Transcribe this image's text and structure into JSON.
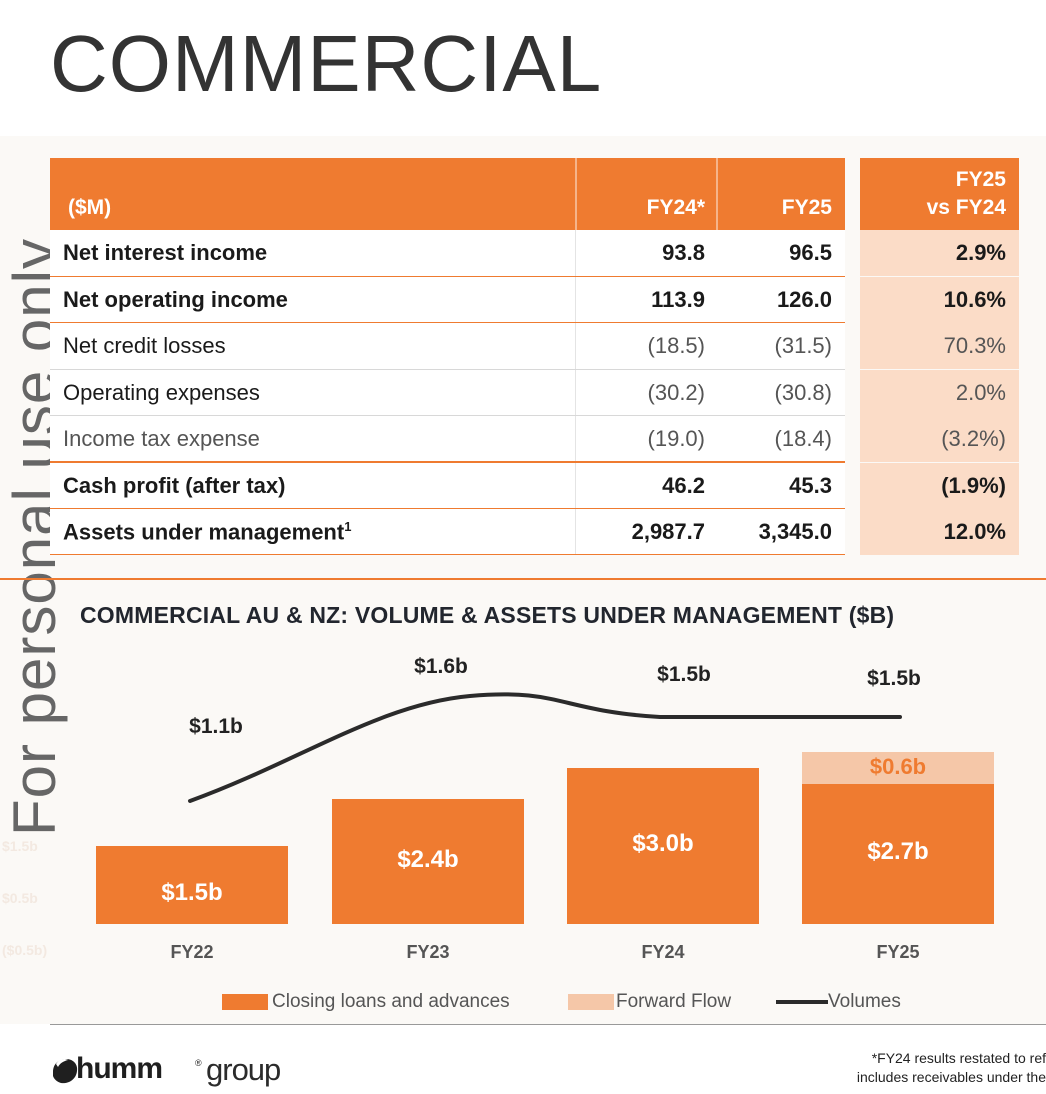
{
  "title": "COMMERCIAL",
  "watermark": "For personal use only",
  "table": {
    "header_label": "($M)",
    "col1": "FY24*",
    "col2": "FY25",
    "col3_line1": "FY25",
    "col3_line2": "vs FY24",
    "rows": [
      {
        "label": "Net interest income",
        "fy24": "93.8",
        "fy25": "96.5",
        "change": "2.9%"
      },
      {
        "label": "Net operating income",
        "fy24": "113.9",
        "fy25": "126.0",
        "change": "10.6%"
      },
      {
        "label": "Net credit losses",
        "fy24": "(18.5)",
        "fy25": "(31.5)",
        "change": "70.3%"
      },
      {
        "label": "Operating expenses",
        "fy24": "(30.2)",
        "fy25": "(30.8)",
        "change": "2.0%"
      },
      {
        "label": "Income tax expense",
        "fy24": "(19.0)",
        "fy25": "(18.4)",
        "change": "(3.2%)"
      },
      {
        "label": "Cash profit (after tax)",
        "fy24": "46.2",
        "fy25": "45.3",
        "change": "(1.9%)"
      },
      {
        "label": "Assets under management",
        "superscript": "1",
        "fy24": "2,987.7",
        "fy25": "3,345.0",
        "change": "12.0%"
      }
    ]
  },
  "chart_data": {
    "type": "bar",
    "title": "COMMERCIAL AU & NZ: VOLUME & ASSETS UNDER MANAGEMENT ($B)",
    "categories": [
      "FY22",
      "FY23",
      "FY24",
      "FY25"
    ],
    "series": [
      {
        "name": "Closing loans and advances",
        "values": [
          1.5,
          2.4,
          3.0,
          2.7
        ],
        "labels": [
          "$1.5b",
          "$2.4b",
          "$3.0b",
          "$2.7b"
        ]
      },
      {
        "name": "Forward Flow",
        "values": [
          0,
          0,
          0,
          0.6
        ],
        "labels": [
          "",
          "",
          "",
          "$0.6b"
        ]
      },
      {
        "name": "Volumes",
        "type": "line",
        "values": [
          1.1,
          1.6,
          1.5,
          1.5
        ],
        "labels": [
          "$1.1b",
          "$1.6b",
          "$1.5b",
          "$1.5b"
        ]
      }
    ],
    "stacked": true,
    "legend": "bottom",
    "colors": {
      "loans": "#ef7b30",
      "forward_flow": "#f5c7a8",
      "volumes": "#2b2b2b"
    },
    "ghost_axis_labels": [
      "$1.5b",
      "$0.5b",
      "($0.5b)"
    ]
  },
  "footer": {
    "logo_word": "humm",
    "logo_suffix": "group",
    "note_line1": "*FY24 results restated to ref",
    "note_line2": "includes receivables under the"
  }
}
